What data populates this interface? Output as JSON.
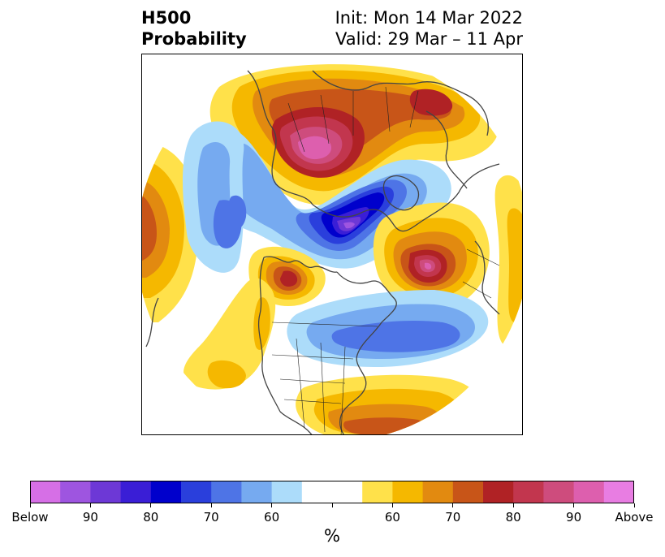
{
  "header": {
    "title_line1": "H500",
    "title_line2": "Probability",
    "init_text": "Init: Mon 14 Mar 2022",
    "valid_text": "Valid: 29 Mar – 11 Apr"
  },
  "colorbar": {
    "unit": "%",
    "colors": [
      "#d66fe6",
      "#9e55e0",
      "#6d38d6",
      "#3a1ed6",
      "#0000cc",
      "#2a3fdc",
      "#4e74e6",
      "#76aaf0",
      "#acdcfa",
      "#ffffff",
      "#ffffff",
      "#ffe14a",
      "#f5b800",
      "#e28a10",
      "#c85518",
      "#b02225",
      "#c2364e",
      "#ce4c7d",
      "#dd5fae",
      "#e87de2"
    ],
    "tick_labels": [
      "Below",
      "90",
      "80",
      "70",
      "60",
      "",
      "60",
      "70",
      "80",
      "90",
      "Above"
    ]
  },
  "map_colors": {
    "above_50": "#ffe14a",
    "above_60": "#f5b800",
    "above_70": "#e28a10",
    "above_75": "#c85518",
    "above_80": "#b02225",
    "above_85": "#c2364e",
    "above_90": "#ce4c7d",
    "above_95": "#dd5fae",
    "below_50": "#acdcfa",
    "below_60": "#76aaf0",
    "below_70": "#4e74e6",
    "below_75": "#2a3fdc",
    "below_80": "#0000cc",
    "below_85": "#3a1ed6",
    "below_90": "#6d38d6",
    "below_95": "#9e55e0",
    "coastline": "#444444",
    "border": "#222222"
  }
}
